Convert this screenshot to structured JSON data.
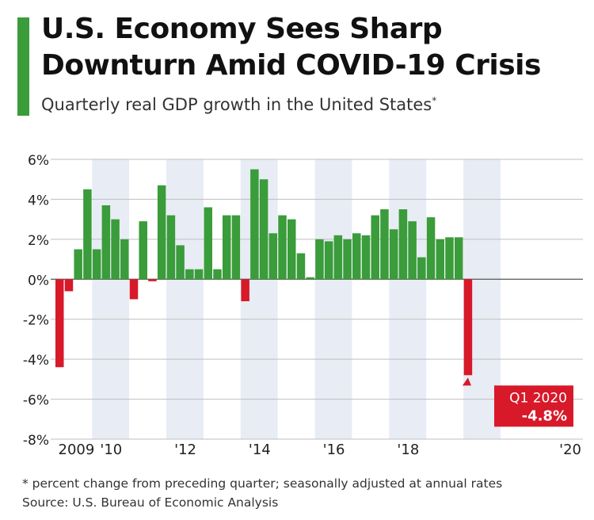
{
  "title": "U.S. Economy Sees Sharp Downturn Amid COVID-19 Crisis",
  "subtitle": "Quarterly real GDP growth in the United States",
  "subtitle_mark": "*",
  "footnote": "* percent change from preceding quarter; seasonally adjusted at annual rates",
  "source": "Source: U.S. Bureau of Economic Analysis",
  "colors": {
    "accent": "#3a9c3a",
    "positive": "#3a9c3a",
    "negative": "#d7192a",
    "band": "#e8ecf4"
  },
  "chart_data": {
    "type": "bar",
    "x": [
      "Q1 2009",
      "Q2 2009",
      "Q3 2009",
      "Q4 2009",
      "Q1 2010",
      "Q2 2010",
      "Q3 2010",
      "Q4 2010",
      "Q1 2011",
      "Q2 2011",
      "Q3 2011",
      "Q4 2011",
      "Q1 2012",
      "Q2 2012",
      "Q3 2012",
      "Q4 2012",
      "Q1 2013",
      "Q2 2013",
      "Q3 2013",
      "Q4 2013",
      "Q1 2014",
      "Q2 2014",
      "Q3 2014",
      "Q4 2014",
      "Q1 2015",
      "Q2 2015",
      "Q3 2015",
      "Q4 2015",
      "Q1 2016",
      "Q2 2016",
      "Q3 2016",
      "Q4 2016",
      "Q1 2017",
      "Q2 2017",
      "Q3 2017",
      "Q4 2017",
      "Q1 2018",
      "Q2 2018",
      "Q3 2018",
      "Q4 2018",
      "Q1 2019",
      "Q2 2019",
      "Q3 2019",
      "Q4 2019",
      "Q1 2020"
    ],
    "values": [
      -4.4,
      -0.6,
      1.5,
      4.5,
      1.5,
      3.7,
      3.0,
      2.0,
      -1.0,
      2.9,
      -0.1,
      4.7,
      3.2,
      1.7,
      0.5,
      0.5,
      3.6,
      0.5,
      3.2,
      3.2,
      -1.1,
      5.5,
      5.0,
      2.3,
      3.2,
      3.0,
      1.3,
      0.1,
      2.0,
      1.9,
      2.2,
      2.0,
      2.3,
      2.2,
      3.2,
      3.5,
      2.5,
      3.5,
      2.9,
      1.1,
      3.1,
      2.0,
      2.1,
      2.1,
      -4.8
    ],
    "ylim": [
      -8,
      6
    ],
    "yticks": [
      6,
      4,
      2,
      0,
      -2,
      -4,
      -6,
      -8
    ],
    "ytick_labels": [
      "6%",
      "4%",
      "2%",
      "0%",
      "-2%",
      "-4%",
      "-6%",
      "-8%"
    ],
    "xtick_labels": [
      {
        "label": "2009",
        "year": 2009
      },
      {
        "label": "'10",
        "year": 2010
      },
      {
        "label": "'12",
        "year": 2012
      },
      {
        "label": "'14",
        "year": 2014
      },
      {
        "label": "'16",
        "year": 2016
      },
      {
        "label": "'18",
        "year": 2018
      },
      {
        "label": "'20",
        "year": 2020
      }
    ],
    "shaded_years": [
      2010,
      2012,
      2014,
      2016,
      2018,
      2020
    ],
    "grid": true,
    "annotation": {
      "quarter": "Q1 2020",
      "label": "Q1 2020",
      "value_label": "-4.8%"
    }
  }
}
